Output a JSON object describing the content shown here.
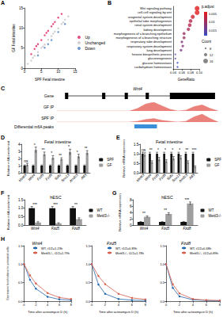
{
  "chart_data": [
    {
      "panel": "A",
      "type": "scatter",
      "x_label": "SPF Fetal intestine",
      "y_label": "GF Fetal intestine",
      "xlim": [
        0,
        15
      ],
      "ylim": [
        0,
        15
      ],
      "xticks": [
        0,
        5,
        10,
        15
      ],
      "yticks": [
        0,
        5,
        10,
        15
      ],
      "legend": "right",
      "series": [
        {
          "name": "Up",
          "color": "#e0245e",
          "x": [
            2,
            3,
            4,
            5,
            6,
            7,
            8,
            9,
            10,
            11,
            3.5,
            6.5,
            8.5
          ],
          "values": [
            3.5,
            4.8,
            6,
            7,
            8.2,
            9.3,
            10.4,
            11.5,
            12.6,
            13.5,
            5.5,
            8.8,
            11
          ]
        },
        {
          "name": "Unchanged",
          "color": "#c4c4c4",
          "x": [
            1,
            2,
            3,
            4,
            5,
            6,
            7,
            8,
            9,
            10,
            11,
            12,
            13,
            2.5,
            5.5,
            8.5,
            11.5
          ],
          "values": [
            1.1,
            1.9,
            3.1,
            4,
            5.1,
            5.9,
            7.1,
            8,
            9.1,
            9.9,
            11,
            12.1,
            12.9,
            2.6,
            5.4,
            8.6,
            11.4
          ]
        },
        {
          "name": "Down",
          "color": "#4f7fc0",
          "x": [
            4,
            6,
            7,
            8,
            10,
            12
          ],
          "values": [
            3.2,
            5.1,
            6,
            7,
            9,
            11
          ]
        }
      ]
    },
    {
      "panel": "B",
      "type": "dotplot",
      "x_label": "GeneRatio",
      "categories": [
        "Wnt signaling pathway",
        "cell-cell signaling by wnt",
        "urogenital system development",
        "epithelial tube morphogenesis",
        "renal system development",
        "kidney development",
        "morphogenesis of a branching epithelium",
        "morphogenesis of a branching structure",
        "respiratory tube development",
        "respiratory system development",
        "lung development",
        "hexose biosynthetic process",
        "gluconeogenesis",
        "glucose homeostasis",
        "carbohydrate homeostasis"
      ],
      "values": [
        0.095,
        0.095,
        0.085,
        0.08,
        0.078,
        0.075,
        0.065,
        0.065,
        0.06,
        0.062,
        0.058,
        0.045,
        0.045,
        0.05,
        0.05
      ],
      "sizes": [
        16,
        16,
        14,
        13,
        13,
        12,
        11,
        11,
        10,
        10,
        10,
        7,
        7,
        8,
        8
      ],
      "p_adjust": [
        0.004,
        0.004,
        0.006,
        0.008,
        0.008,
        0.009,
        0.01,
        0.01,
        0.012,
        0.012,
        0.013,
        0.016,
        0.016,
        0.018,
        0.018
      ],
      "xlim": [
        0.04,
        0.1
      ],
      "xticks": [
        0.04,
        0.06,
        0.08,
        {
          "value": 0.1,
          "label": "0.10"
        }
      ],
      "color_bar": {
        "title": "p.adjust",
        "range": [
          0.004,
          0.018
        ],
        "ticks": [
          0.005,
          0.01,
          0.015
        ],
        "colors": [
          "#e41a1c",
          "#3b4cc0"
        ]
      },
      "size_legend": {
        "title": "Count",
        "values": [
          8,
          12,
          16
        ]
      }
    },
    {
      "panel": "C",
      "type": "tracks",
      "gene_label": "Gene",
      "gene": "Wnt4",
      "gene_span": [
        5,
        98
      ],
      "exons": [
        [
          5,
          7
        ],
        [
          28,
          30
        ],
        [
          42,
          44
        ],
        [
          55,
          57
        ],
        [
          70,
          98
        ]
      ],
      "xlim": [
        0,
        100
      ],
      "ylim": [
        0,
        1
      ],
      "x": [
        0,
        5,
        10,
        15,
        20,
        25,
        30,
        35,
        40,
        45,
        50,
        55,
        60,
        65,
        70,
        75,
        80,
        85,
        90,
        95,
        100
      ],
      "tracks": [
        {
          "name": "GF IP",
          "color": "#e8736b",
          "values": [
            0,
            0,
            0,
            0,
            0,
            0,
            0,
            0,
            0,
            0,
            0.3,
            0.8,
            1,
            0.6,
            0.2,
            0,
            0.1,
            0.5,
            0.7,
            0.3,
            0
          ]
        },
        {
          "name": "SPF IP",
          "color": "#e8736b",
          "values": [
            0,
            0,
            0,
            0,
            0,
            0,
            0,
            0,
            0,
            0,
            0.1,
            0.3,
            0.4,
            0.2,
            0.1,
            0,
            0.1,
            0.6,
            0.9,
            0.4,
            0
          ]
        }
      ],
      "peak": {
        "label": "Differential m6A peaks",
        "start": 48,
        "end": 62,
        "color": "#3b8fd9"
      }
    },
    {
      "panel": "D",
      "type": "bar",
      "title": "Fetal intestine",
      "y_label": "Relative m6A enrichment",
      "categories": [
        "Mettl3",
        "Wnt4",
        "Fzd5",
        "Fzd8",
        "Sufu",
        "Sox13",
        "Arrdc3",
        "Atf3"
      ],
      "ylim": [
        0,
        4
      ],
      "yticks": [
        0,
        1,
        2,
        3,
        4
      ],
      "legend": "right",
      "series": [
        {
          "name": "SPF",
          "color": "#111111",
          "values": [
            1,
            1,
            1,
            1,
            1,
            1,
            1,
            1
          ],
          "errors": [
            0.1,
            0.1,
            0.1,
            0.1,
            0.1,
            0.1,
            0.1,
            0.1
          ]
        },
        {
          "name": "GF",
          "color": "#9e9e9e",
          "values": [
            1.1,
            3.2,
            2.6,
            2.1,
            1.9,
            2.9,
            2.3,
            2.8
          ],
          "errors": [
            0.2,
            0.4,
            0.3,
            0.3,
            0.2,
            0.4,
            0.3,
            0.3
          ]
        }
      ],
      "annotations": [
        "ns",
        "*",
        "**",
        "*",
        "**",
        "*",
        "*",
        "**"
      ]
    },
    {
      "panel": "E",
      "type": "bar",
      "title": "Fetal intestine",
      "y_label": "Relative mRNA expression",
      "categories": [
        "Mettl3",
        "Wnt4",
        "Fzd5",
        "Fzd8",
        "Sufu",
        "Sox13",
        "Arrdc3",
        "Atf3"
      ],
      "ylim": [
        0,
        1.5
      ],
      "yticks": [
        {
          "value": 0,
          "label": "0.0"
        },
        {
          "value": 0.5,
          "label": "0.5"
        },
        {
          "value": 1,
          "label": "1.0"
        },
        {
          "value": 1.5,
          "label": "1.5"
        }
      ],
      "legend": "right",
      "series": [
        {
          "name": "SPF",
          "color": "#111111",
          "values": [
            1,
            1,
            1,
            1,
            1,
            1,
            1,
            1
          ],
          "errors": [
            0.08,
            0.08,
            0.08,
            0.08,
            0.08,
            0.08,
            0.08,
            0.08
          ]
        },
        {
          "name": "GF",
          "color": "#9e9e9e",
          "values": [
            0.95,
            0.55,
            0.7,
            0.6,
            0.75,
            0.8,
            0.55,
            0.3
          ],
          "errors": [
            0.1,
            0.08,
            0.1,
            0.08,
            0.1,
            0.1,
            0.08,
            0.06
          ]
        }
      ],
      "annotations": [
        "ns",
        "**",
        "*",
        "*",
        "*",
        "*",
        "**",
        "***"
      ]
    },
    {
      "panel": "F",
      "type": "bar",
      "title": "hESC",
      "y_label": "Relative m6A enrichment",
      "categories": [
        "Wnt4",
        "Fzd5",
        "Fzd8"
      ],
      "ylim": [
        0,
        1.5
      ],
      "yticks": [
        {
          "value": 0,
          "label": "0.0"
        },
        {
          "value": 0.5,
          "label": "0.5"
        },
        {
          "value": 1,
          "label": "1.0"
        },
        {
          "value": 1.5,
          "label": "1.5"
        }
      ],
      "legend": "right",
      "series": [
        {
          "name": "WT",
          "color": "#111111",
          "values": [
            1,
            1,
            1
          ],
          "errors": [
            0.1,
            0.1,
            0.1
          ]
        },
        {
          "name": "Mettl3-/-",
          "color": "#9e9e9e",
          "values": [
            0.15,
            0.1,
            0.35
          ],
          "errors": [
            0.05,
            0.04,
            0.08
          ]
        }
      ],
      "annotations": [
        "***",
        "***",
        "**"
      ]
    },
    {
      "panel": "G",
      "type": "bar",
      "title": "hESC",
      "y_label": "Relative mRNA expression",
      "categories": [
        "Wnt4",
        "Fzd5",
        "Fzd8"
      ],
      "ylim": [
        0,
        8
      ],
      "yticks": [
        0,
        2,
        4,
        6,
        8
      ],
      "legend": "right",
      "series": [
        {
          "name": "WT",
          "color": "#111111",
          "values": [
            1,
            1,
            1
          ],
          "errors": [
            0.1,
            0.1,
            0.1
          ]
        },
        {
          "name": "Mettl3-/-",
          "color": "#9e9e9e",
          "values": [
            2.6,
            3.5,
            6.8
          ],
          "errors": [
            0.3,
            0.4,
            0.5
          ]
        }
      ],
      "annotations": [
        "**",
        "**",
        "***"
      ]
    },
    {
      "panel": "H",
      "type": "line",
      "title": "Wnt4",
      "x_label": "Time after actinomycin D (h)",
      "y_label": "Expression level relative to untreated cells",
      "x": [
        0,
        1,
        2,
        4,
        6,
        8
      ],
      "xlim": [
        0,
        8
      ],
      "xticks": [
        0,
        2,
        4,
        6,
        8
      ],
      "ylim": [
        0,
        1.5
      ],
      "yticks": [
        {
          "value": 0,
          "label": "0.0"
        },
        {
          "value": 0.5,
          "label": "0.5"
        },
        {
          "value": 1,
          "label": "1.0"
        },
        {
          "value": 1.5,
          "label": "1.5"
        }
      ],
      "legend": "upper right",
      "series": [
        {
          "name": "WT, t1/2=1.23h",
          "color": "#2166ac",
          "marker": "circle",
          "values": [
            1,
            0.58,
            0.34,
            0.12,
            0.05,
            0.03
          ]
        },
        {
          "name": "Mettl3-/-, t1/2=1.79h",
          "color": "#d6604d",
          "marker": "circle",
          "values": [
            1,
            0.7,
            0.48,
            0.22,
            0.1,
            0.06
          ]
        }
      ]
    },
    {
      "type": "line",
      "title": "Fzd5",
      "x_label": "Time after actinomycin D (h)",
      "x": [
        0,
        1,
        2,
        4,
        6,
        8
      ],
      "xlim": [
        0,
        8
      ],
      "xticks": [
        0,
        2,
        4,
        6,
        8
      ],
      "ylim": [
        0,
        1.5
      ],
      "yticks": [
        {
          "value": 0,
          "label": "0.0"
        },
        {
          "value": 0.5,
          "label": "0.5"
        },
        {
          "value": 1,
          "label": "1.0"
        },
        {
          "value": 1.5,
          "label": "1.5"
        }
      ],
      "legend": "upper right",
      "series": [
        {
          "name": "WT, t1/2=0.89h",
          "color": "#2166ac",
          "marker": "circle",
          "values": [
            1,
            0.45,
            0.2,
            0.06,
            0.03,
            0.02
          ]
        },
        {
          "name": "Mettl3-/-, t1/2=1.78h",
          "color": "#d6604d",
          "marker": "circle",
          "values": [
            1,
            0.68,
            0.46,
            0.2,
            0.09,
            0.05
          ]
        }
      ]
    },
    {
      "type": "line",
      "title": "Fzd8",
      "x_label": "Time after actinomycin D (h)",
      "x": [
        0,
        1,
        2,
        4,
        6,
        8
      ],
      "xlim": [
        0,
        8
      ],
      "xticks": [
        0,
        2,
        4,
        6,
        8
      ],
      "ylim": [
        0,
        1.5
      ],
      "yticks": [
        {
          "value": 0,
          "label": "0.0"
        },
        {
          "value": 0.5,
          "label": "0.5"
        },
        {
          "value": 1,
          "label": "1.0"
        },
        {
          "value": 1.5,
          "label": "1.5"
        }
      ],
      "legend": "upper right",
      "series": [
        {
          "name": "WT, t1/2=0.68h",
          "color": "#2166ac",
          "marker": "circle",
          "values": [
            1,
            0.36,
            0.13,
            0.04,
            0.02,
            0.01
          ]
        },
        {
          "name": "Mettl3-/-, t1/2=0.89h",
          "color": "#d6604d",
          "marker": "circle",
          "values": [
            1,
            0.46,
            0.21,
            0.06,
            0.03,
            0.02
          ]
        }
      ]
    }
  ]
}
